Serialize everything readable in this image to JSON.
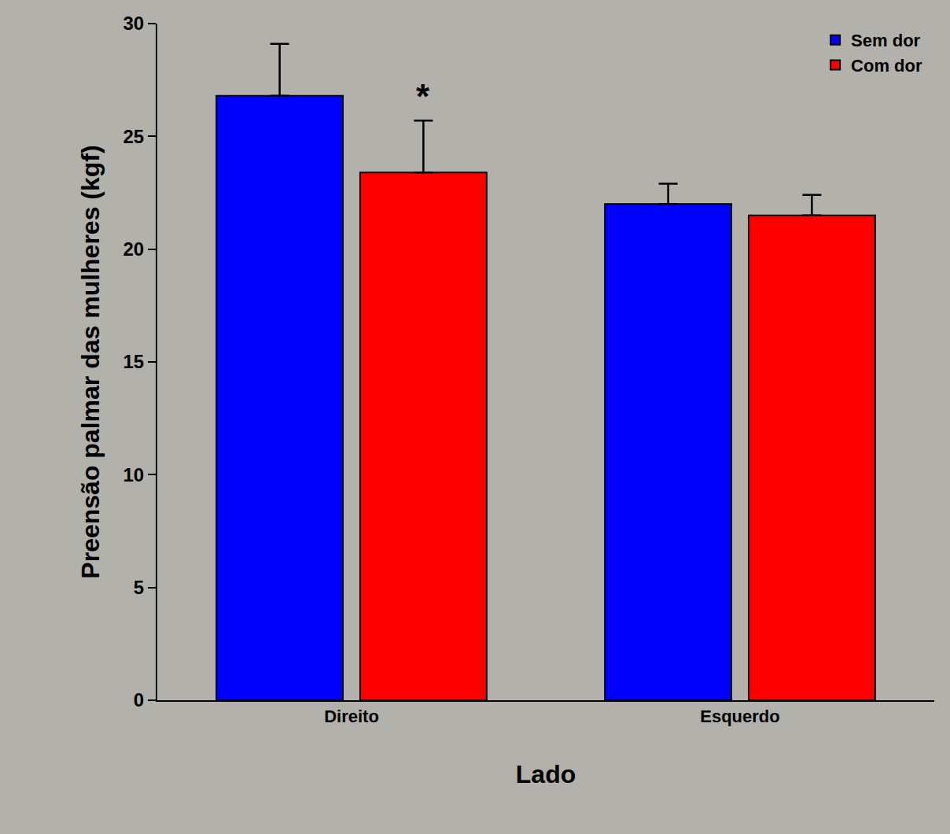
{
  "chart_data": {
    "type": "bar",
    "x_label": "Lado",
    "y_label": "Preensão palmar das mulheres (kgf)",
    "categories": [
      "Direito",
      "Esquerdo"
    ],
    "series": [
      {
        "name": "Sem dor",
        "color": "#0000ff",
        "values": [
          26.8,
          22.0
        ],
        "errors": [
          2.3,
          0.9
        ]
      },
      {
        "name": "Com dor",
        "color": "#ff0000",
        "values": [
          23.4,
          21.5
        ],
        "errors": [
          2.3,
          0.9
        ]
      }
    ],
    "ylim": [
      0,
      30
    ],
    "yticks": [
      0,
      5,
      10,
      15,
      20,
      25,
      30
    ],
    "grid": false,
    "legend": "top right",
    "annotations": [
      {
        "text": "*",
        "category": "Direito",
        "series": "Com dor"
      }
    ]
  }
}
